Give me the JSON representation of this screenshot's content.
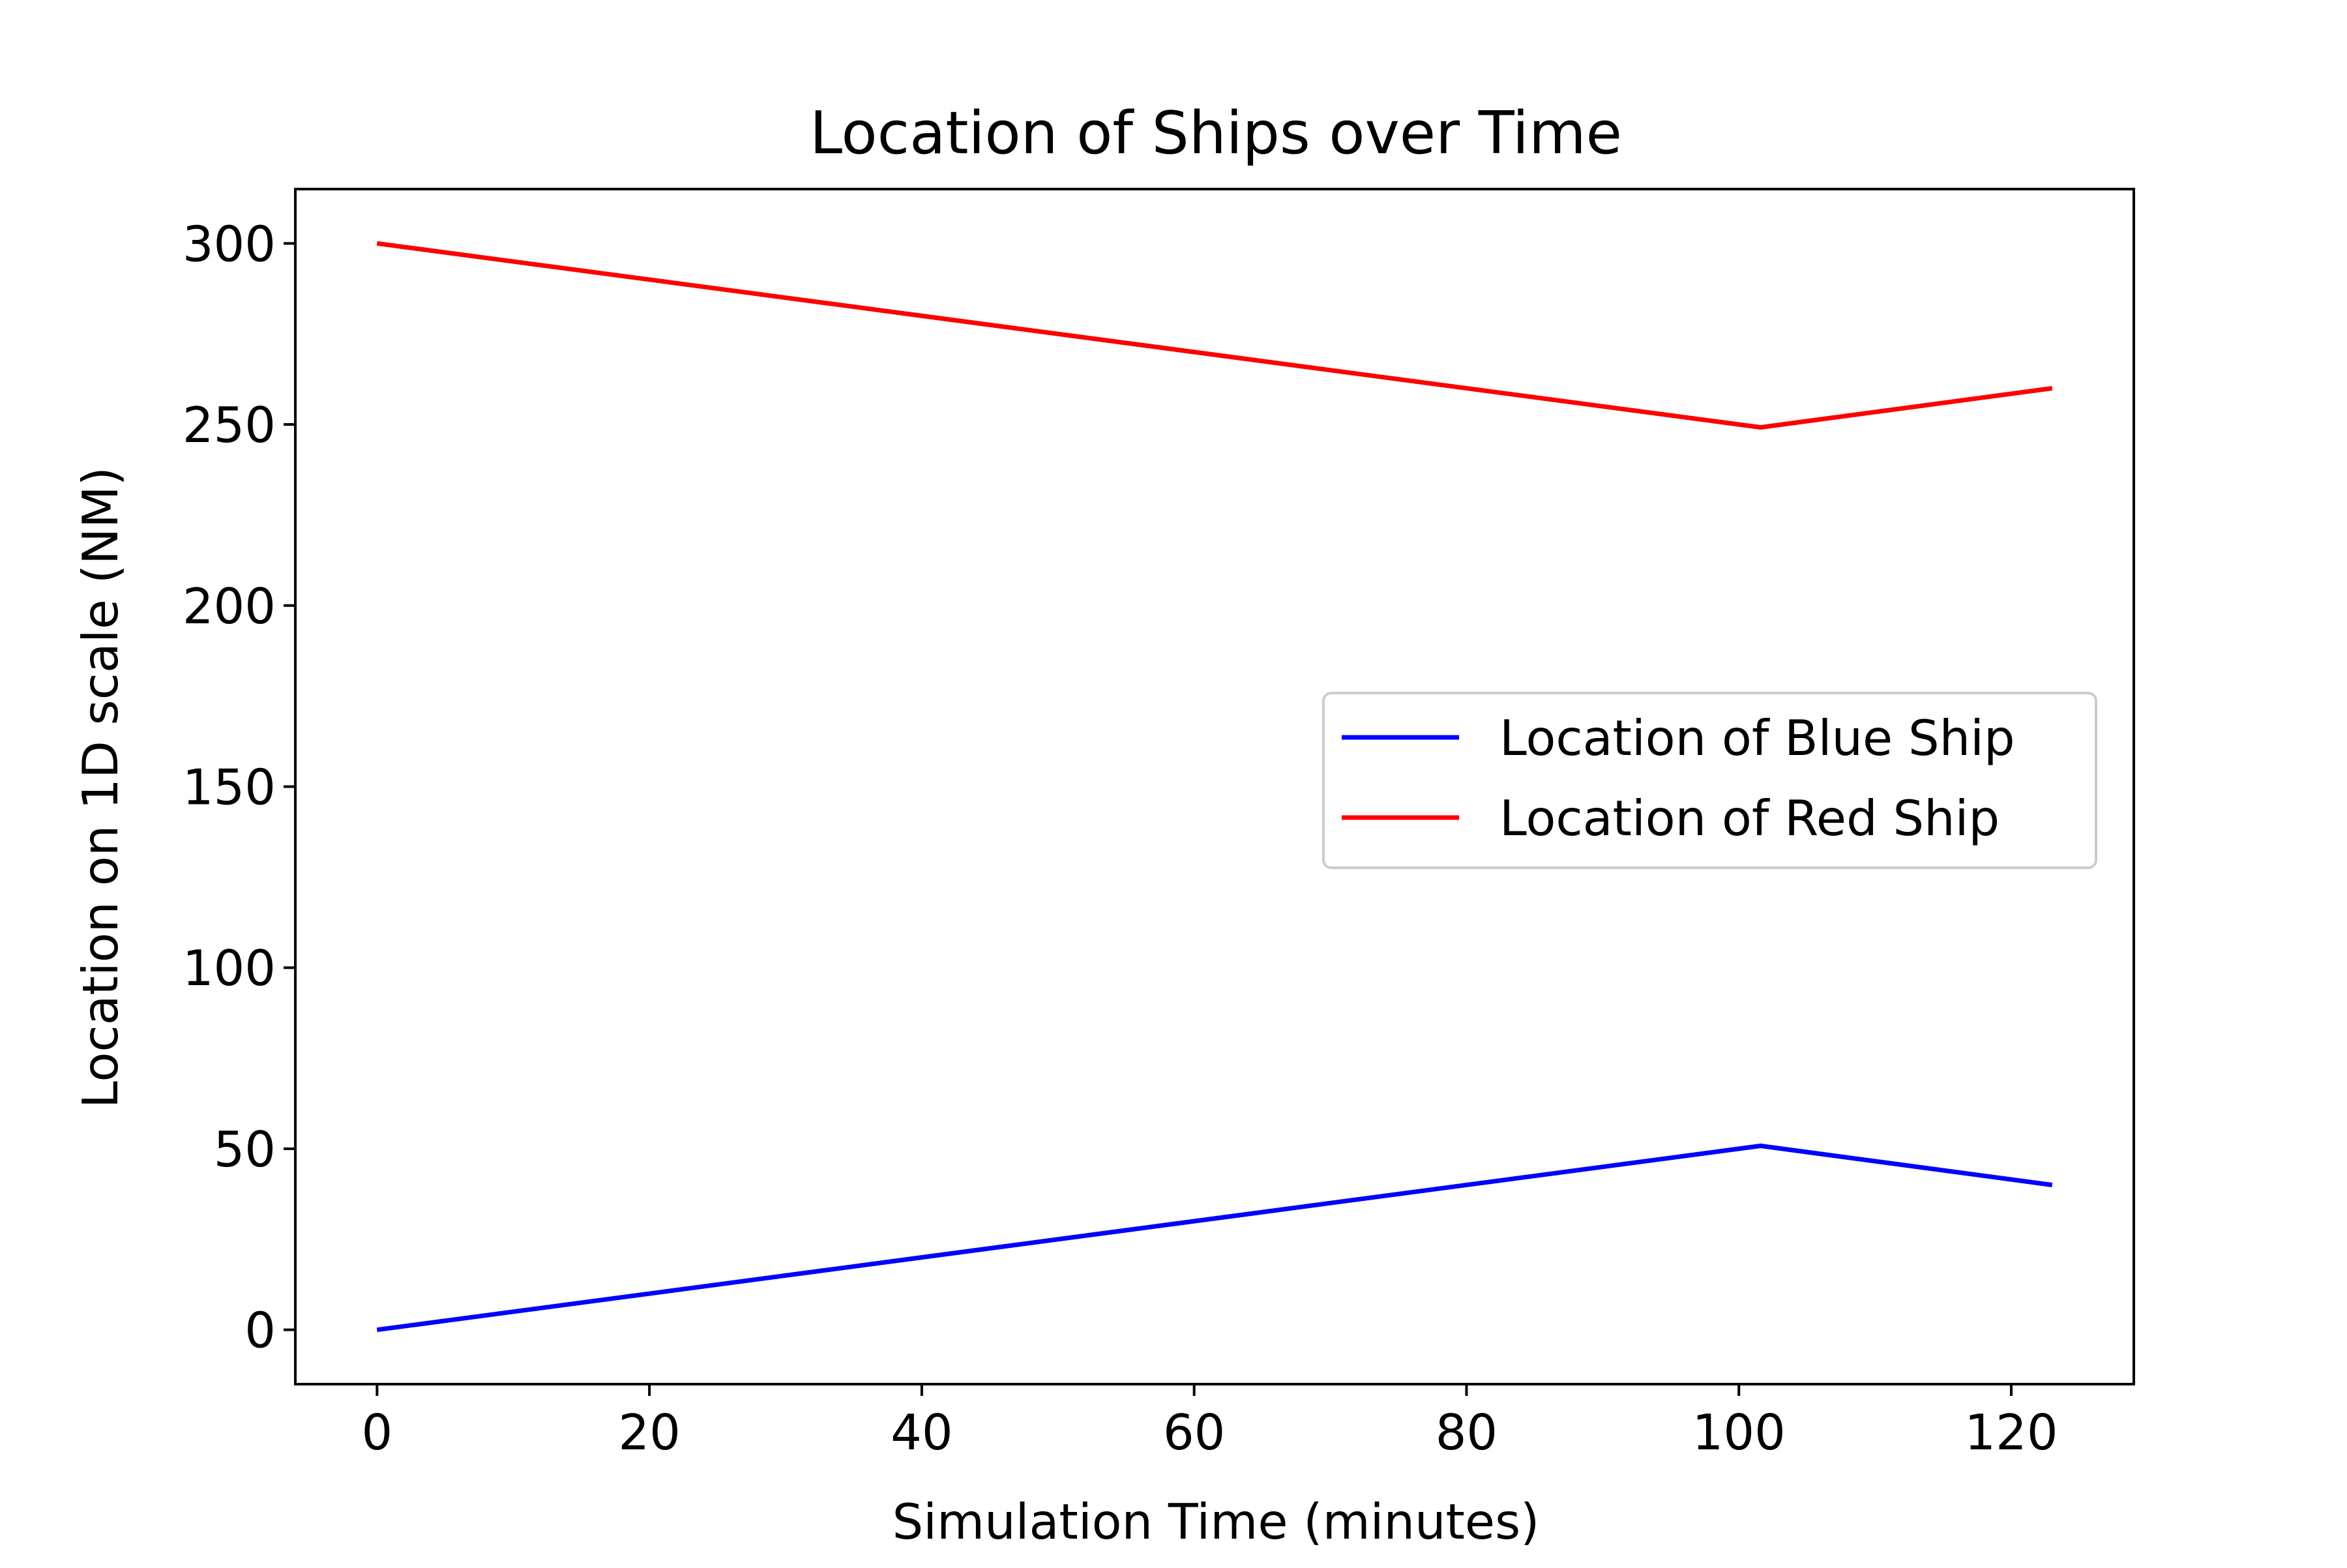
{
  "chart_data": {
    "type": "line",
    "title": "Location of Ships over Time",
    "xlabel": "Simulation Time (minutes)",
    "ylabel": "Location on 1D scale (NM)",
    "xlim": [
      -6,
      129
    ],
    "ylim": [
      -15,
      315
    ],
    "xticks": [
      0,
      20,
      40,
      60,
      80,
      100,
      120
    ],
    "yticks": [
      0,
      50,
      100,
      150,
      200,
      250,
      300
    ],
    "grid": false,
    "legend": {
      "position": "center-right"
    },
    "series": [
      {
        "name": "Location of Blue Ship",
        "color": "#0000ff",
        "x": [
          0,
          101.6,
          123
        ],
        "y": [
          0,
          50.8,
          40
        ]
      },
      {
        "name": "Location of Red Ship",
        "color": "#ff0000",
        "x": [
          0,
          101.6,
          123
        ],
        "y": [
          300,
          249.2,
          260
        ]
      }
    ]
  }
}
